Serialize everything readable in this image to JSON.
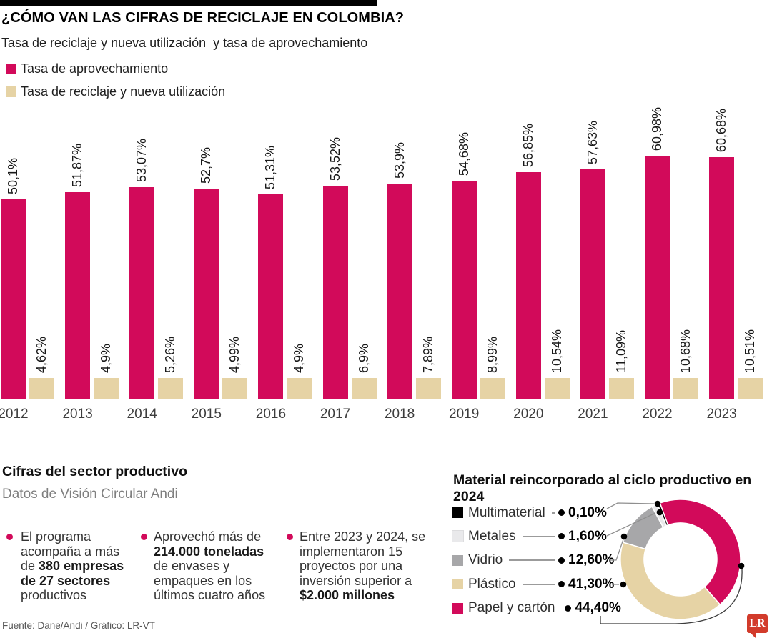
{
  "header": {
    "title": "¿CÓMO VAN LAS CIFRAS DE RECICLAJE EN COLOMBIA?",
    "subtitle": "Tasa de reciclaje y nueva utilización  y tasa de aprovechamiento",
    "legend": [
      {
        "label": "Tasa de aprovechamiento",
        "color": "#d20a5a"
      },
      {
        "label": "Tasa de reciclaje y nueva utilización",
        "color": "#e6d3a5"
      }
    ]
  },
  "chart_data": [
    {
      "type": "bar",
      "title": "Tasa de reciclaje y nueva utilización y tasa de aprovechamiento",
      "categories": [
        "2012",
        "2013",
        "2014",
        "2015",
        "2016",
        "2017",
        "2018",
        "2019",
        "2020",
        "2021",
        "2022",
        "2023"
      ],
      "series": [
        {
          "name": "Tasa de aprovechamiento",
          "color": "#d20a5a",
          "values": [
            50.1,
            51.87,
            53.07,
            52.7,
            51.31,
            53.52,
            53.9,
            54.68,
            56.85,
            57.63,
            60.98,
            60.68
          ],
          "labels": [
            "50,1%",
            "51,87%",
            "53,07%",
            "52,7%",
            "51,31%",
            "53,52%",
            "53,9%",
            "54,68%",
            "56,85%",
            "57,63%",
            "60,98%",
            "60,68%"
          ]
        },
        {
          "name": "Tasa de reciclaje y nueva utilización",
          "color": "#e6d3a5",
          "values": [
            4.62,
            4.9,
            5.26,
            4.99,
            4.9,
            6.9,
            7.89,
            8.99,
            10.54,
            11.09,
            10.68,
            10.51
          ],
          "labels": [
            "4,62%",
            "4,9%",
            "5,26%",
            "4,99%",
            "4,9%",
            "6,9%",
            "7,89%",
            "8,99%",
            "10,54%",
            "11,09%",
            "10,68%",
            "10,51%"
          ]
        }
      ],
      "ylabel": "",
      "xlabel": "",
      "ylim": [
        0,
        100
      ],
      "grid": false,
      "value_labels_rotated": true,
      "legend_position": "top-left"
    },
    {
      "type": "pie",
      "donut": true,
      "title": "Material reincorporado al ciclo productivo en 2024",
      "slices": [
        {
          "label": "Multimaterial",
          "value": 0.1,
          "display": "0,10%",
          "color": "#000000"
        },
        {
          "label": "Metales",
          "value": 1.6,
          "display": "1,60%",
          "color": "#e9e9eb"
        },
        {
          "label": "Vidrio",
          "value": 12.6,
          "display": "12,60%",
          "color": "#a7a7a9"
        },
        {
          "label": "Plástico",
          "value": 41.3,
          "display": "41,30%",
          "color": "#e6d3a5"
        },
        {
          "label": "Papel y cartón",
          "value": 44.4,
          "display": "44,40%",
          "color": "#d20a5a"
        }
      ],
      "legend_position": "left"
    }
  ],
  "sector": {
    "heading": "Cifras del sector productivo",
    "subheading": "Datos de Visión Circular Andi",
    "bullet_color": "#d20a5a",
    "bullets": [
      {
        "segments": [
          [
            "El programa acompaña a más de ",
            false
          ],
          [
            "380 empresas de 27 sectores",
            true
          ],
          [
            " productivos",
            false
          ]
        ]
      },
      {
        "segments": [
          [
            "Aprovechó más de ",
            false
          ],
          [
            "214.000 toneladas",
            true
          ],
          [
            " de envases y empaques en los últimos cuatro años",
            false
          ]
        ]
      },
      {
        "segments": [
          [
            "Entre 2023 y 2024, se implementaron 15 proyectos por una inversión superior a ",
            false
          ],
          [
            "$2.000 millones",
            true
          ]
        ]
      }
    ]
  },
  "footer": {
    "source": "Fuente: Dane/Andi  / Gráfico: LR-VT"
  },
  "logo": {
    "text": "LR",
    "color": "#d23b2b"
  }
}
